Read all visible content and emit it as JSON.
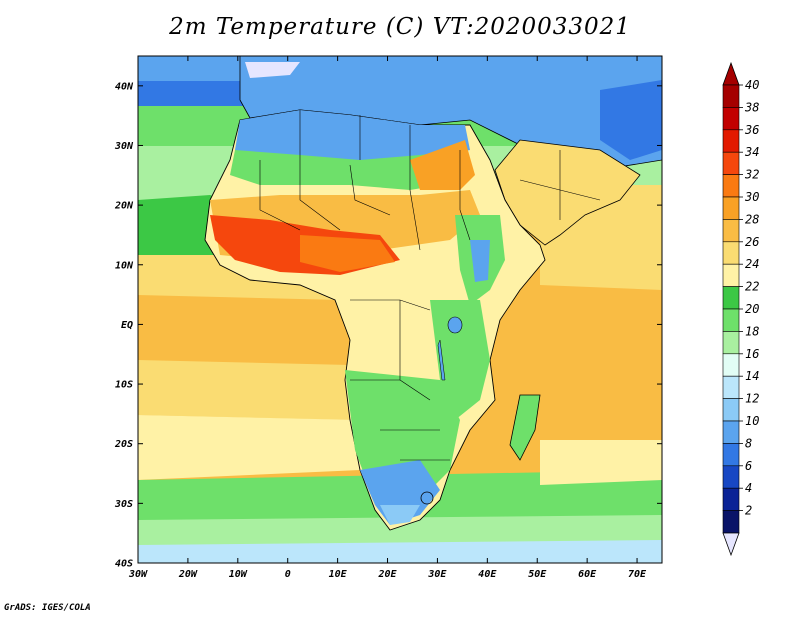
{
  "title": "2m Temperature (C) VT:2020033021",
  "credit": "GrADS: IGES/COLA",
  "map": {
    "lon_range": [
      -30,
      75
    ],
    "lat_range": [
      -40,
      45
    ],
    "x_ticks": [
      {
        "lon": -30,
        "label": "30W"
      },
      {
        "lon": -20,
        "label": "20W"
      },
      {
        "lon": -10,
        "label": "10W"
      },
      {
        "lon": 0,
        "label": "0"
      },
      {
        "lon": 10,
        "label": "10E"
      },
      {
        "lon": 20,
        "label": "20E"
      },
      {
        "lon": 30,
        "label": "30E"
      },
      {
        "lon": 40,
        "label": "40E"
      },
      {
        "lon": 50,
        "label": "50E"
      },
      {
        "lon": 60,
        "label": "60E"
      },
      {
        "lon": 70,
        "label": "70E"
      }
    ],
    "y_ticks": [
      {
        "lat": 40,
        "label": "40N"
      },
      {
        "lat": 30,
        "label": "30N"
      },
      {
        "lat": 20,
        "label": "20N"
      },
      {
        "lat": 10,
        "label": "10N"
      },
      {
        "lat": 0,
        "label": "EQ"
      },
      {
        "lat": -10,
        "label": "10S"
      },
      {
        "lat": -20,
        "label": "20S"
      },
      {
        "lat": -30,
        "label": "30S"
      },
      {
        "lat": -40,
        "label": "40S"
      }
    ]
  },
  "colorbar": {
    "labels": [
      "40",
      "38",
      "36",
      "34",
      "32",
      "30",
      "28",
      "26",
      "24",
      "22",
      "20",
      "18",
      "16",
      "14",
      "12",
      "10",
      "8",
      "6",
      "4",
      "2"
    ],
    "colors": [
      "#a50000",
      "#c20000",
      "#e21a00",
      "#f5470d",
      "#fa7a12",
      "#f9a125",
      "#f9bc44",
      "#fadc72",
      "#fff2a6",
      "#3cc845",
      "#6ee06a",
      "#a9f0a0",
      "#e2fdf5",
      "#bbe6fb",
      "#8bcaf6",
      "#5ba4ee",
      "#3278e4",
      "#1747c4",
      "#0a2396",
      "#091368"
    ],
    "top_color": "#a50000",
    "bottom_color": "#e6e6ff"
  }
}
